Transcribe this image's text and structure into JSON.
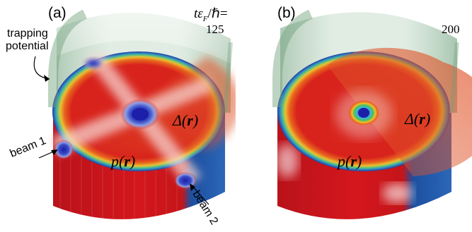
{
  "panel_a": {
    "label": "(a)",
    "time_label": "tε",
    "time_subscript": "F",
    "time_tail": "/ℏ=",
    "time_value": "125",
    "trapping_label_line1": "trapping",
    "trapping_label_line2": "potential",
    "beam1_label": "beam 1",
    "beam2_label": "beam 2",
    "delta_symbol": "Δ",
    "delta_arg": "r",
    "p_symbol": "p",
    "p_arg": "r"
  },
  "panel_b": {
    "label": "(b)",
    "time_value": "200",
    "delta_symbol": "Δ",
    "delta_arg": "r",
    "p_symbol": "p",
    "p_arg": "r"
  },
  "colors": {
    "red": "#d4171d",
    "orange": "#e0552a",
    "green_cylinder": "#8fb89a",
    "blue_edge": "#1d55a7",
    "vortex_blue": "#2a2fb0"
  }
}
